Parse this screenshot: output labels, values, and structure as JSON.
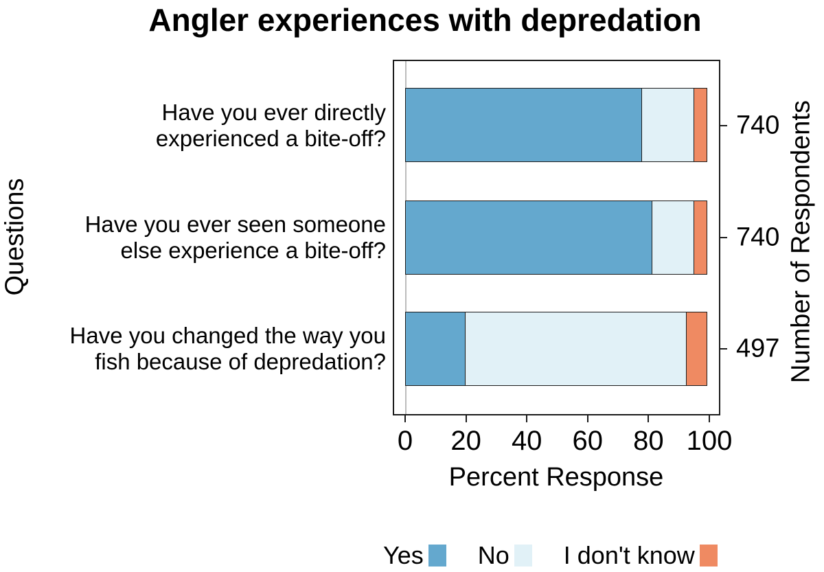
{
  "chart_data": {
    "type": "bar",
    "orientation": "horizontal",
    "stacked": true,
    "title": "Angler experiences with depredation",
    "xlabel": "Percent Response",
    "ylabel": "Questions",
    "ylabel_right": "Number of Respondents",
    "xlim": [
      0,
      100
    ],
    "xticks": [
      0,
      20,
      40,
      60,
      80,
      100
    ],
    "grid": "zero-line-only",
    "legend_position": "bottom",
    "categories": [
      "Have you ever directly\nexperienced a bite-off?",
      "Have you ever seen someone\nelse experience a bite-off?",
      "Have you changed the way you\nfish because of depredation?"
    ],
    "respondents": [
      740,
      740,
      497
    ],
    "series": [
      {
        "name": "Yes",
        "color": "#64A8CE",
        "values": [
          78.0,
          81.5,
          20.0
        ]
      },
      {
        "name": "No",
        "color": "#E1F1F7",
        "values": [
          17.5,
          14.0,
          73.0
        ]
      },
      {
        "name": "I don't know",
        "color": "#EF8A62",
        "values": [
          4.5,
          4.5,
          7.0
        ]
      }
    ],
    "frame_color": "#1a1a1a",
    "zero_line_color": "#bcbcbc"
  },
  "layout_values": {
    "row_centers_note": "three stacked horizontal bars, n labels on right axis"
  }
}
